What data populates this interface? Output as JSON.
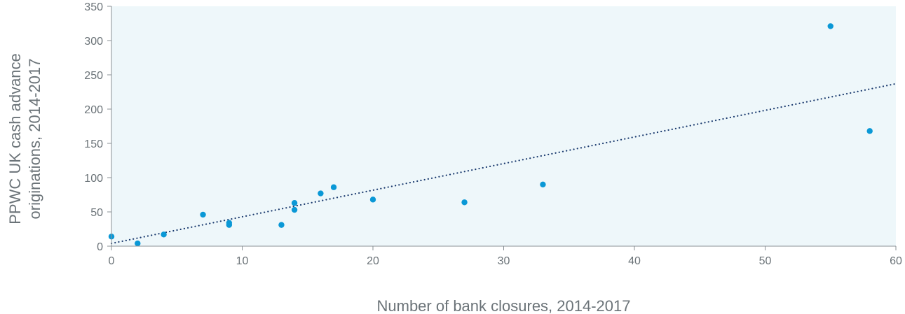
{
  "colors": {
    "plot_background": "#eef7fa",
    "point": "#0a98d6",
    "trendline": "#1a3a6e",
    "axis": "#8a9196",
    "text": "#6b7378"
  },
  "chart_data": {
    "type": "scatter",
    "xlabel": "Number of bank closures, 2014-2017",
    "ylabel_lines": [
      "PPWC  UK cash advance",
      "originations, 2014-2017"
    ],
    "xlim": [
      0,
      60
    ],
    "ylim": [
      0,
      350
    ],
    "x_ticks": [
      "0",
      "10",
      "20",
      "30",
      "40",
      "50",
      "60"
    ],
    "y_ticks": [
      "0",
      "50",
      "100",
      "150",
      "200",
      "250",
      "300",
      "350"
    ],
    "grid": false,
    "legend": "none",
    "trendline": {
      "style": "dotted",
      "x": [
        0,
        60
      ],
      "y": [
        4,
        237
      ]
    },
    "points": [
      {
        "x": 0,
        "y": 14
      },
      {
        "x": 2,
        "y": 4
      },
      {
        "x": 4,
        "y": 17
      },
      {
        "x": 7,
        "y": 46
      },
      {
        "x": 9,
        "y": 34
      },
      {
        "x": 9,
        "y": 31
      },
      {
        "x": 13,
        "y": 31
      },
      {
        "x": 14,
        "y": 63
      },
      {
        "x": 14,
        "y": 53
      },
      {
        "x": 16,
        "y": 77
      },
      {
        "x": 17,
        "y": 86
      },
      {
        "x": 20,
        "y": 68
      },
      {
        "x": 27,
        "y": 64
      },
      {
        "x": 33,
        "y": 90
      },
      {
        "x": 55,
        "y": 321
      },
      {
        "x": 58,
        "y": 168
      }
    ]
  }
}
